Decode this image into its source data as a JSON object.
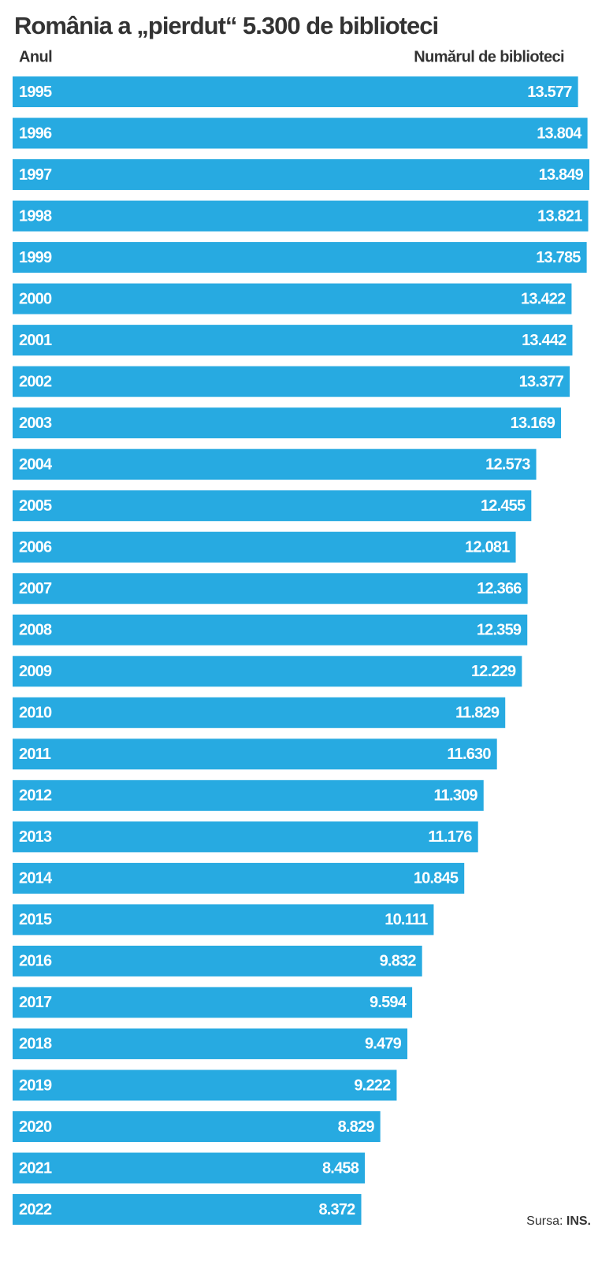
{
  "chart_data": {
    "type": "bar",
    "orientation": "horizontal",
    "title": "România a „pierdut“ 5.300 de biblioteci",
    "category_header": "Anul",
    "value_header": "Numărul de biblioteci",
    "categories": [
      "1995",
      "1996",
      "1997",
      "1998",
      "1999",
      "2000",
      "2001",
      "2002",
      "2003",
      "2004",
      "2005",
      "2006",
      "2007",
      "2008",
      "2009",
      "2010",
      "2011",
      "2012",
      "2013",
      "2014",
      "2015",
      "2016",
      "2017",
      "2018",
      "2019",
      "2020",
      "2021",
      "2022"
    ],
    "values": [
      13577,
      13804,
      13849,
      13821,
      13785,
      13422,
      13442,
      13377,
      13169,
      12573,
      12455,
      12081,
      12366,
      12359,
      12229,
      11829,
      11630,
      11309,
      11176,
      10845,
      10111,
      9832,
      9594,
      9479,
      9222,
      8829,
      8458,
      8372
    ],
    "value_labels": [
      "13.577",
      "13.804",
      "13.849",
      "13.821",
      "13.785",
      "13.422",
      "13.442",
      "13.377",
      "13.169",
      "12.573",
      "12.455",
      "12.081",
      "12.366",
      "12.359",
      "12.229",
      "11.829",
      "11.630",
      "11.309",
      "11.176",
      "10.845",
      "10.111",
      "9.832",
      "9.594",
      "9.479",
      "9.222",
      "8.829",
      "8.458",
      "8.372"
    ],
    "color": "#27aae1",
    "source_label": "Sursa:",
    "source": "INS."
  }
}
